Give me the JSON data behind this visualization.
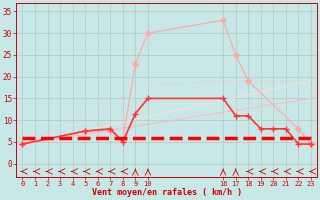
{
  "background_color": "#c8e8e8",
  "grid_color": "#b0c8c8",
  "xlabel": "Vent moyen/en rafales ( km/h )",
  "ylabel_ticks": [
    0,
    5,
    10,
    15,
    20,
    25,
    30,
    35
  ],
  "xlim": [
    -0.5,
    23.5
  ],
  "ylim": [
    -3,
    37
  ],
  "xtick_positions": [
    0,
    1,
    2,
    3,
    4,
    5,
    6,
    7,
    8,
    9,
    10,
    16,
    17,
    18,
    19,
    20,
    21,
    22,
    23
  ],
  "xtick_labels": [
    "0",
    "1",
    "2",
    "3",
    "4",
    "5",
    "6",
    "7",
    "8",
    "9",
    "10",
    "16",
    "17",
    "18",
    "19",
    "20",
    "21",
    "22",
    "23"
  ],
  "line_dotted": {
    "x": [
      0,
      10,
      16,
      23
    ],
    "y": [
      4.5,
      18,
      19,
      19
    ],
    "color": "#ffbbbb",
    "lw": 0.8,
    "linestyle": "dotted"
  },
  "line_thin_pink": {
    "x": [
      0,
      5,
      7,
      8,
      9,
      10,
      16,
      17,
      18,
      22,
      23
    ],
    "y": [
      4.5,
      7.5,
      7.5,
      5.5,
      23,
      30,
      33,
      25,
      19,
      8,
      4.5
    ],
    "color": "#ffaaaa",
    "lw": 0.9,
    "marker": "P",
    "ms": 3.5,
    "linestyle": "-"
  },
  "line_solid_pink": {
    "x": [
      0,
      5,
      7,
      8,
      9,
      10,
      16,
      17,
      18,
      22,
      23
    ],
    "y": [
      4.5,
      7.5,
      7.5,
      5.5,
      23,
      30,
      33,
      25,
      19,
      8,
      4.5
    ],
    "color": "#ffcccc",
    "lw": 0.7,
    "linestyle": "-"
  },
  "line_diagonal1": {
    "x": [
      0,
      23
    ],
    "y": [
      4.5,
      15
    ],
    "color": "#ffbbbb",
    "lw": 0.8,
    "linestyle": "-"
  },
  "line_diagonal2": {
    "x": [
      0,
      23
    ],
    "y": [
      4.5,
      19
    ],
    "color": "#ffdddd",
    "lw": 0.7,
    "linestyle": "-"
  },
  "line_medium_red": {
    "x": [
      0,
      5,
      7,
      8,
      9,
      10,
      16,
      17,
      18,
      19,
      20,
      21,
      22,
      23
    ],
    "y": [
      4.5,
      7.5,
      8,
      5,
      11.5,
      15,
      15,
      11,
      11,
      8,
      8,
      8,
      4.5,
      4.5
    ],
    "color": "#ff3333",
    "lw": 1.2,
    "marker": "+",
    "ms": 5,
    "linestyle": "-"
  },
  "line_dashed": {
    "x": [
      0,
      10,
      16,
      23
    ],
    "y": [
      6,
      6,
      6,
      6
    ],
    "color": "#ff0000",
    "lw": 2.5,
    "linestyle": "--"
  },
  "arrow_data": {
    "positions": [
      0,
      1,
      2,
      3,
      4,
      5,
      6,
      7,
      8,
      9,
      10,
      16,
      17,
      18,
      19,
      20,
      21,
      22,
      23
    ],
    "y_base": -1.8,
    "color": "#cc0000"
  }
}
